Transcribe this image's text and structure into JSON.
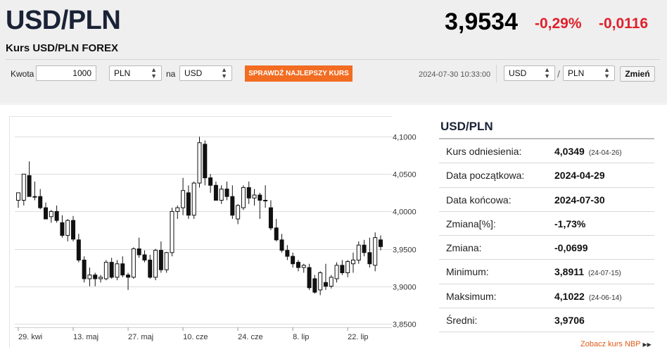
{
  "header": {
    "pair": "USD/PLN",
    "subtitle": "Kurs USD/PLN FOREX",
    "rate": "3,9534",
    "change_pct": "-0,29%",
    "change_abs": "-0,0116"
  },
  "converter": {
    "amount_label": "Kwota",
    "amount_value": "1000",
    "from_currency": "PLN",
    "to_label": "na",
    "to_currency": "USD",
    "best_rate_label": "SPRAWDŹ NAJLEPSZY KURS",
    "timestamp": "2024-07-30 10:33:00",
    "pair_base": "USD",
    "pair_sep": "/",
    "pair_quote": "PLN",
    "swap_label": "Zmień"
  },
  "stats": {
    "title": "USD/PLN",
    "rows": [
      {
        "label": "Kurs odniesienia:",
        "value": "4,0349",
        "date": "(24-04-26)"
      },
      {
        "label": "Data początkowa:",
        "value": "2024-04-29",
        "date": ""
      },
      {
        "label": "Data końcowa:",
        "value": "2024-07-30",
        "date": ""
      },
      {
        "label": "Zmiana[%]:",
        "value": "-1,73%",
        "date": ""
      },
      {
        "label": "Zmiana:",
        "value": "-0,0699",
        "date": ""
      },
      {
        "label": "Minimum:",
        "value": "3,8911",
        "date": "(24-07-15)"
      },
      {
        "label": "Maksimum:",
        "value": "4,1022",
        "date": "(24-06-14)"
      },
      {
        "label": "Średni:",
        "value": "3,9706",
        "date": ""
      }
    ],
    "nbp_link": "Zobacz kurs NBP"
  },
  "icons": {
    "select_arrow": "updown-arrow-icon",
    "link_arrow": "double-chevron-right-icon"
  },
  "colors": {
    "accent": "#f26c21",
    "negative": "#e0202a",
    "title": "#1a2236"
  },
  "chart_data": {
    "type": "candlestick",
    "title": "",
    "xlabel": "",
    "ylabel": "",
    "ylim": [
      3.845,
      4.12
    ],
    "y_ticks": [
      "4,1000",
      "4,0500",
      "4,0000",
      "3,9500",
      "3,9000",
      "3,8500"
    ],
    "y_tick_values": [
      4.1,
      4.05,
      4.0,
      3.95,
      3.9,
      3.85
    ],
    "x_tick_labels": [
      {
        "label": "29. kwi",
        "index": 0
      },
      {
        "label": "13. maj",
        "index": 10
      },
      {
        "label": "27. maj",
        "index": 20
      },
      {
        "label": "10. cze",
        "index": 30
      },
      {
        "label": "24. cze",
        "index": 40
      },
      {
        "label": "8. lip",
        "index": 50
      },
      {
        "label": "22. lip",
        "index": 60
      }
    ],
    "candles": [
      [
        4.015,
        4.025,
        4.005,
        4.025
      ],
      [
        4.015,
        4.05,
        4.008,
        4.05
      ],
      [
        4.048,
        4.067,
        4.02,
        4.02
      ],
      [
        4.02,
        4.04,
        4.015,
        4.02
      ],
      [
        4.02,
        4.03,
        4.003,
        4.005
      ],
      [
        4.005,
        4.012,
        3.99,
        3.99
      ],
      [
        3.993,
        4.002,
        3.985,
        4.0
      ],
      [
        4.0,
        4.008,
        3.985,
        3.988
      ],
      [
        3.985,
        3.995,
        3.965,
        3.968
      ],
      [
        3.968,
        3.99,
        3.96,
        3.988
      ],
      [
        3.988,
        3.994,
        3.96,
        3.963
      ],
      [
        3.962,
        3.97,
        3.932,
        3.935
      ],
      [
        3.935,
        3.94,
        3.905,
        3.91
      ],
      [
        3.91,
        3.925,
        3.9,
        3.915
      ],
      [
        3.915,
        3.918,
        3.9,
        3.91
      ],
      [
        3.91,
        3.915,
        3.905,
        3.912
      ],
      [
        3.91,
        3.935,
        3.908,
        3.932
      ],
      [
        3.932,
        3.938,
        3.91,
        3.912
      ],
      [
        3.912,
        3.935,
        3.908,
        3.93
      ],
      [
        3.93,
        3.94,
        3.912,
        3.915
      ],
      [
        3.915,
        3.918,
        3.895,
        3.912
      ],
      [
        3.912,
        3.952,
        3.91,
        3.95
      ],
      [
        3.95,
        3.965,
        3.938,
        3.942
      ],
      [
        3.942,
        3.948,
        3.932,
        3.935
      ],
      [
        3.935,
        3.942,
        3.91,
        3.912
      ],
      [
        3.912,
        3.95,
        3.908,
        3.948
      ],
      [
        3.948,
        3.96,
        3.918,
        3.922
      ],
      [
        3.922,
        3.946,
        3.918,
        3.945
      ],
      [
        3.945,
        4.005,
        3.94,
        4.0
      ],
      [
        4.0,
        4.008,
        3.99,
        4.005
      ],
      [
        4.005,
        4.045,
        3.995,
        4.028
      ],
      [
        4.025,
        4.035,
        3.99,
        3.995
      ],
      [
        3.995,
        4.04,
        3.99,
        4.038
      ],
      [
        4.038,
        4.1,
        4.032,
        4.092
      ],
      [
        4.09,
        4.095,
        4.035,
        4.045
      ],
      [
        4.045,
        4.05,
        4.025,
        4.035
      ],
      [
        4.035,
        4.04,
        4.015,
        4.015
      ],
      [
        4.015,
        4.035,
        4.01,
        4.03
      ],
      [
        4.03,
        4.04,
        4.015,
        4.02
      ],
      [
        4.02,
        4.035,
        3.99,
        3.995
      ],
      [
        3.99,
        4.01,
        3.983,
        4.008
      ],
      [
        4.005,
        4.035,
        4.002,
        4.032
      ],
      [
        4.032,
        4.04,
        4.01,
        4.018
      ],
      [
        4.018,
        4.03,
        4.008,
        4.022
      ],
      [
        4.022,
        4.025,
        3.99,
        4.015
      ],
      [
        4.015,
        4.035,
        4.005,
        4.015
      ],
      [
        4.005,
        4.015,
        3.975,
        3.978
      ],
      [
        3.978,
        3.99,
        3.96,
        3.962
      ],
      [
        3.962,
        3.97,
        3.945,
        3.948
      ],
      [
        3.948,
        3.955,
        3.935,
        3.94
      ],
      [
        3.94,
        3.945,
        3.925,
        3.93
      ],
      [
        3.932,
        3.935,
        3.92,
        3.925
      ],
      [
        3.925,
        3.93,
        3.918,
        3.928
      ],
      [
        3.925,
        3.93,
        3.895,
        3.898
      ],
      [
        3.91,
        3.915,
        3.89,
        3.892
      ],
      [
        3.895,
        3.92,
        3.888,
        3.918
      ],
      [
        3.905,
        3.93,
        3.895,
        3.9
      ],
      [
        3.9,
        3.915,
        3.897,
        3.912
      ],
      [
        3.91,
        3.932,
        3.905,
        3.928
      ],
      [
        3.928,
        3.935,
        3.915,
        3.918
      ],
      [
        3.918,
        3.935,
        3.912,
        3.933
      ],
      [
        3.93,
        3.945,
        3.918,
        3.935
      ],
      [
        3.935,
        3.96,
        3.93,
        3.955
      ],
      [
        3.955,
        3.962,
        3.94,
        3.945
      ],
      [
        3.945,
        3.965,
        3.925,
        3.93
      ],
      [
        3.928,
        3.972,
        3.92,
        3.965
      ],
      [
        3.962,
        3.968,
        3.948,
        3.953
      ]
    ]
  }
}
